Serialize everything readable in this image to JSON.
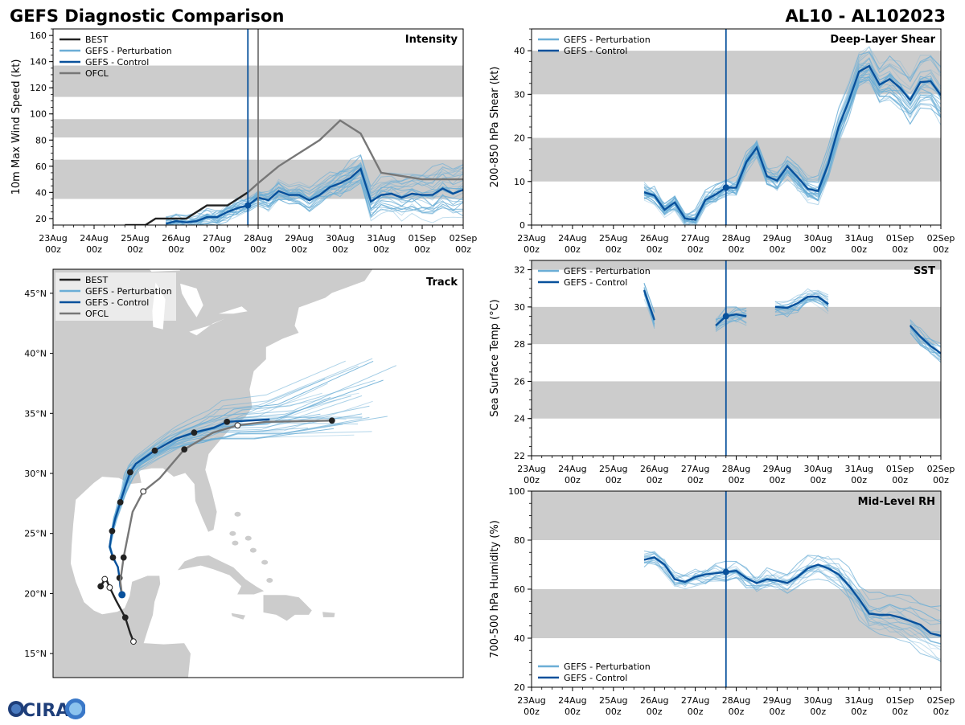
{
  "header": {
    "title": "GEFS Diagnostic Comparison",
    "storm_id": "AL10 - AL102023"
  },
  "logo": {
    "text": "CIRA"
  },
  "colors": {
    "best": "#222222",
    "perturbation": "#6baed6",
    "control": "#08519c",
    "ofcl": "#777777",
    "band": "#cccccc",
    "land": "#cccccc"
  },
  "time_axis": {
    "tick_labels": [
      "23Aug\n00z",
      "24Aug\n00z",
      "25Aug\n00z",
      "26Aug\n00z",
      "27Aug\n00z",
      "28Aug\n00z",
      "29Aug\n00z",
      "30Aug\n00z",
      "31Aug\n00z",
      "01Sep\n00z",
      "02Sep\n00z"
    ],
    "current_time_day": 4.75,
    "ofcl_time_day": 5.0
  },
  "chart_data": [
    {
      "id": "intensity",
      "type": "line",
      "title": "Intensity",
      "ylabel": "10m Max Wind Speed (kt)",
      "xlabel": "",
      "xlim": [
        0,
        10
      ],
      "ylim": [
        15,
        165
      ],
      "yticks": [
        20,
        40,
        60,
        80,
        100,
        120,
        140,
        160
      ],
      "bands": [
        [
          35,
          65
        ],
        [
          82,
          96
        ],
        [
          113,
          137
        ]
      ],
      "legend": [
        "BEST",
        "GEFS - Perturbation",
        "GEFS - Control",
        "OFCL"
      ],
      "legend_position": "top-left",
      "series": [
        {
          "name": "BEST",
          "x": [
            1.75,
            2.0,
            2.25,
            2.5,
            2.75,
            3.0,
            3.25,
            3.5,
            3.75,
            4.0,
            4.25,
            4.5,
            4.75
          ],
          "y": [
            15,
            15,
            15,
            20,
            20,
            20,
            20,
            25,
            30,
            30,
            30,
            35,
            40
          ]
        },
        {
          "name": "OFCL",
          "x": [
            4.75,
            5.0,
            5.5,
            6.0,
            6.5,
            7.0,
            7.5,
            8.0,
            9.0,
            10.0
          ],
          "y": [
            40,
            47,
            60,
            70,
            80,
            95,
            85,
            55,
            50,
            50
          ]
        },
        {
          "name": "GEFS - Control",
          "x": [
            2.75,
            3.0,
            3.25,
            3.5,
            3.75,
            4.0,
            4.25,
            4.5,
            4.75,
            5.0,
            5.25,
            5.5,
            5.75,
            6.0,
            6.25,
            6.5,
            6.75,
            7.0,
            7.25,
            7.5,
            7.75,
            8.0,
            8.25,
            8.5,
            8.75,
            9.0,
            9.25,
            9.5,
            9.75,
            10.0
          ],
          "y": [
            16,
            18,
            17,
            18,
            21,
            21,
            25,
            28,
            30,
            36,
            34,
            41,
            38,
            38,
            34,
            38,
            44,
            47,
            51,
            58,
            33,
            38,
            39,
            36,
            39,
            38,
            38,
            43,
            39,
            42
          ]
        }
      ],
      "perturbation_count": 30
    },
    {
      "id": "shear",
      "type": "line",
      "title": "Deep-Layer Shear",
      "ylabel": "200-850 hPa Shear (kt)",
      "xlabel": "",
      "xlim": [
        0,
        10
      ],
      "ylim": [
        0,
        45
      ],
      "yticks": [
        0,
        10,
        20,
        30,
        40
      ],
      "bands": [
        [
          10,
          20
        ],
        [
          30,
          40
        ]
      ],
      "legend": [
        "GEFS - Perturbation",
        "GEFS - Control"
      ],
      "legend_position": "top-left",
      "series": [
        {
          "name": "GEFS - Control",
          "x": [
            2.75,
            3.0,
            3.25,
            3.5,
            3.75,
            4.0,
            4.25,
            4.5,
            4.75,
            5.0,
            5.25,
            5.5,
            5.75,
            6.0,
            6.25,
            6.5,
            6.75,
            7.0,
            7.25,
            7.5,
            7.75,
            8.0,
            8.25,
            8.5,
            8.75,
            9.0,
            9.25,
            9.5,
            9.75,
            10.0
          ],
          "y": [
            7.5,
            6.8,
            3.5,
            5.2,
            1.5,
            1.2,
            5.8,
            7.0,
            8.6,
            8.6,
            14.5,
            17.8,
            11.2,
            10.2,
            13.5,
            11.0,
            8.3,
            7.8,
            14.0,
            22.5,
            28.5,
            35.2,
            36.5,
            32.2,
            33.5,
            31.5,
            28.7,
            32.8,
            33.0,
            29.8
          ]
        }
      ],
      "perturbation_count": 30
    },
    {
      "id": "track",
      "type": "scatter",
      "title": "Track",
      "lon_range": [
        -100,
        -50
      ],
      "lat_range": [
        13,
        47
      ],
      "lat_ticks": [
        "15°N",
        "20°N",
        "25°N",
        "30°N",
        "35°N",
        "40°N",
        "45°N"
      ],
      "legend": [
        "BEST",
        "GEFS - Perturbation",
        "GEFS - Control",
        "OFCL"
      ],
      "legend_position": "top-left",
      "series": [
        {
          "name": "BEST",
          "lon": [
            -90.2,
            -90.6,
            -91.2,
            -92.3,
            -93.1,
            -93.6,
            -94.2,
            -93.9,
            -93.7
          ],
          "lat": [
            16.0,
            16.7,
            18.0,
            19.4,
            20.5,
            21.3,
            20.6,
            20.9,
            21.2
          ]
        },
        {
          "name": "GEFS - Control",
          "lon": [
            -91.6,
            -91.8,
            -91.9,
            -92.1,
            -92.7,
            -93.1,
            -92.8,
            -92.4,
            -91.8,
            -91.2,
            -90.6,
            -89.9,
            -87.6,
            -85.0,
            -82.8,
            -80.4,
            -78.8,
            -73.6
          ],
          "lat": [
            19.9,
            20.6,
            21.3,
            22.2,
            23.0,
            23.9,
            25.2,
            26.3,
            27.6,
            28.9,
            30.1,
            30.8,
            31.9,
            32.9,
            33.4,
            33.8,
            34.3,
            34.5
          ]
        },
        {
          "name": "OFCL",
          "lon": [
            -91.6,
            -91.8,
            -91.4,
            -90.3,
            -89.0,
            -87.0,
            -84.0,
            -80.5,
            -77.5,
            -74.0,
            -66.0
          ],
          "lat": [
            19.9,
            21.0,
            23.0,
            26.8,
            28.5,
            29.6,
            32.0,
            33.4,
            34.0,
            34.3,
            34.4
          ]
        }
      ],
      "perturbation_count": 30
    },
    {
      "id": "sst",
      "type": "line",
      "title": "SST",
      "ylabel": "Sea Surface Temp (°C)",
      "xlabel": "",
      "xlim": [
        0,
        10
      ],
      "ylim": [
        22,
        32.5
      ],
      "yticks": [
        22,
        24,
        26,
        28,
        30,
        32
      ],
      "bands": [
        [
          24,
          26
        ],
        [
          28,
          30
        ],
        [
          32,
          32.5
        ]
      ],
      "legend": [
        "GEFS - Perturbation",
        "GEFS - Control"
      ],
      "legend_position": "top-left",
      "series": [
        {
          "name": "GEFS - Control (a)",
          "x": [
            2.75,
            3.0
          ],
          "y": [
            30.9,
            29.3
          ]
        },
        {
          "name": "GEFS - Control (b)",
          "x": [
            4.5,
            4.75,
            5.0,
            5.25
          ],
          "y": [
            29.0,
            29.5,
            29.6,
            29.5
          ]
        },
        {
          "name": "GEFS - Control (c)",
          "x": [
            5.95,
            6.25,
            6.5,
            6.75,
            7.0,
            7.25
          ],
          "y": [
            30.0,
            29.95,
            30.2,
            30.55,
            30.55,
            30.15
          ]
        },
        {
          "name": "GEFS - Control (d)",
          "x": [
            9.25,
            9.5,
            9.75,
            10.0
          ],
          "y": [
            29.0,
            28.4,
            27.9,
            27.5
          ]
        }
      ],
      "perturbation_count": 20
    },
    {
      "id": "rh",
      "type": "line",
      "title": "Mid-Level RH",
      "ylabel": "700-500 hPa Humidity (%)",
      "xlabel": "",
      "xlim": [
        0,
        10
      ],
      "ylim": [
        20,
        100
      ],
      "yticks": [
        20,
        40,
        60,
        80,
        100
      ],
      "bands": [
        [
          40,
          60
        ],
        [
          80,
          100
        ]
      ],
      "legend": [
        "GEFS - Perturbation",
        "GEFS - Control"
      ],
      "legend_position": "bottom-left",
      "series": [
        {
          "name": "GEFS - Control",
          "x": [
            2.75,
            3.0,
            3.25,
            3.5,
            3.75,
            4.0,
            4.25,
            4.5,
            4.75,
            5.0,
            5.25,
            5.5,
            5.75,
            6.0,
            6.25,
            6.5,
            6.75,
            7.0,
            7.25,
            7.5,
            7.75,
            8.0,
            8.25,
            8.5,
            8.75,
            9.0,
            9.25,
            9.5,
            9.75,
            10.0
          ],
          "y": [
            72,
            73,
            70,
            64,
            63,
            65,
            66,
            66.5,
            67,
            67.5,
            64.5,
            62.5,
            64,
            63.5,
            62.5,
            65,
            68.5,
            70,
            68.5,
            66,
            61.5,
            56,
            50,
            49.5,
            49.5,
            48.5,
            47,
            45.5,
            42,
            41
          ]
        }
      ],
      "perturbation_count": 20
    }
  ]
}
